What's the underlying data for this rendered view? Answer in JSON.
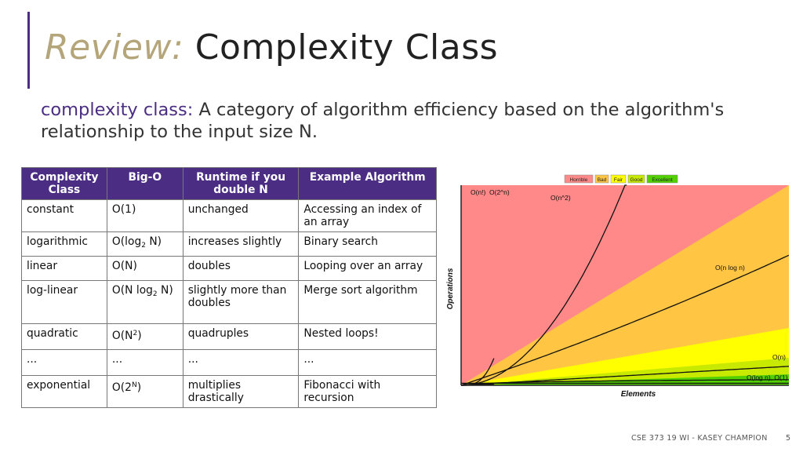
{
  "title": {
    "prefix": "Review:",
    "main": "Complexity Class"
  },
  "definition": {
    "term": "complexity class:",
    "text": "A category of algorithm efficiency based on the algorithm's relationship to the input size N."
  },
  "table": {
    "headers": [
      "Complexity Class",
      "Big-O",
      "Runtime if you double N",
      "Example Algorithm"
    ],
    "rows": [
      {
        "cls": "constant",
        "bigo": "O(1)",
        "runtime": "unchanged",
        "example": "Accessing an index of an array"
      },
      {
        "cls": "logarithmic",
        "bigo_a": "O(log",
        "bigo_sub": "2",
        "bigo_b": " N)",
        "runtime": "increases slightly",
        "example": "Binary search"
      },
      {
        "cls": "linear",
        "bigo": "O(N)",
        "runtime": "doubles",
        "example": "Looping over an array"
      },
      {
        "cls": "log-linear",
        "bigo_a": "O(N log",
        "bigo_sub": "2",
        "bigo_b": " N)",
        "runtime": "slightly more than doubles",
        "example": "Merge sort algorithm"
      },
      {
        "cls": "quadratic",
        "bigo_a": "O(N",
        "bigo_sup": "2",
        "bigo_b": ")",
        "runtime": "quadruples",
        "example": "Nested loops!"
      },
      {
        "cls": "...",
        "bigo": "...",
        "runtime": "...",
        "example": "..."
      },
      {
        "cls": "exponential",
        "bigo_a": "O(2",
        "bigo_sup": "N",
        "bigo_b": ")",
        "runtime": "multiplies drastically",
        "example": "Fibonacci with recursion"
      }
    ]
  },
  "chart_data": {
    "type": "line",
    "xlabel": "Elements",
    "ylabel": "Operations",
    "legend": [
      {
        "label": "Horrible",
        "color": "#ff8989"
      },
      {
        "label": "Bad",
        "color": "#ffc543"
      },
      {
        "label": "Fair",
        "color": "#ffff00"
      },
      {
        "label": "Good",
        "color": "#c8ea00"
      },
      {
        "label": "Excellent",
        "color": "#53d000"
      }
    ],
    "curve_labels": [
      "O(n!)",
      "O(2^n)",
      "O(n^2)",
      "O(n log n)",
      "O(n)",
      "O(log n), O(1)"
    ],
    "legend_position": "top"
  },
  "footer": {
    "course": "CSE 373 19 WI - KASEY CHAMPION",
    "page": "5"
  }
}
